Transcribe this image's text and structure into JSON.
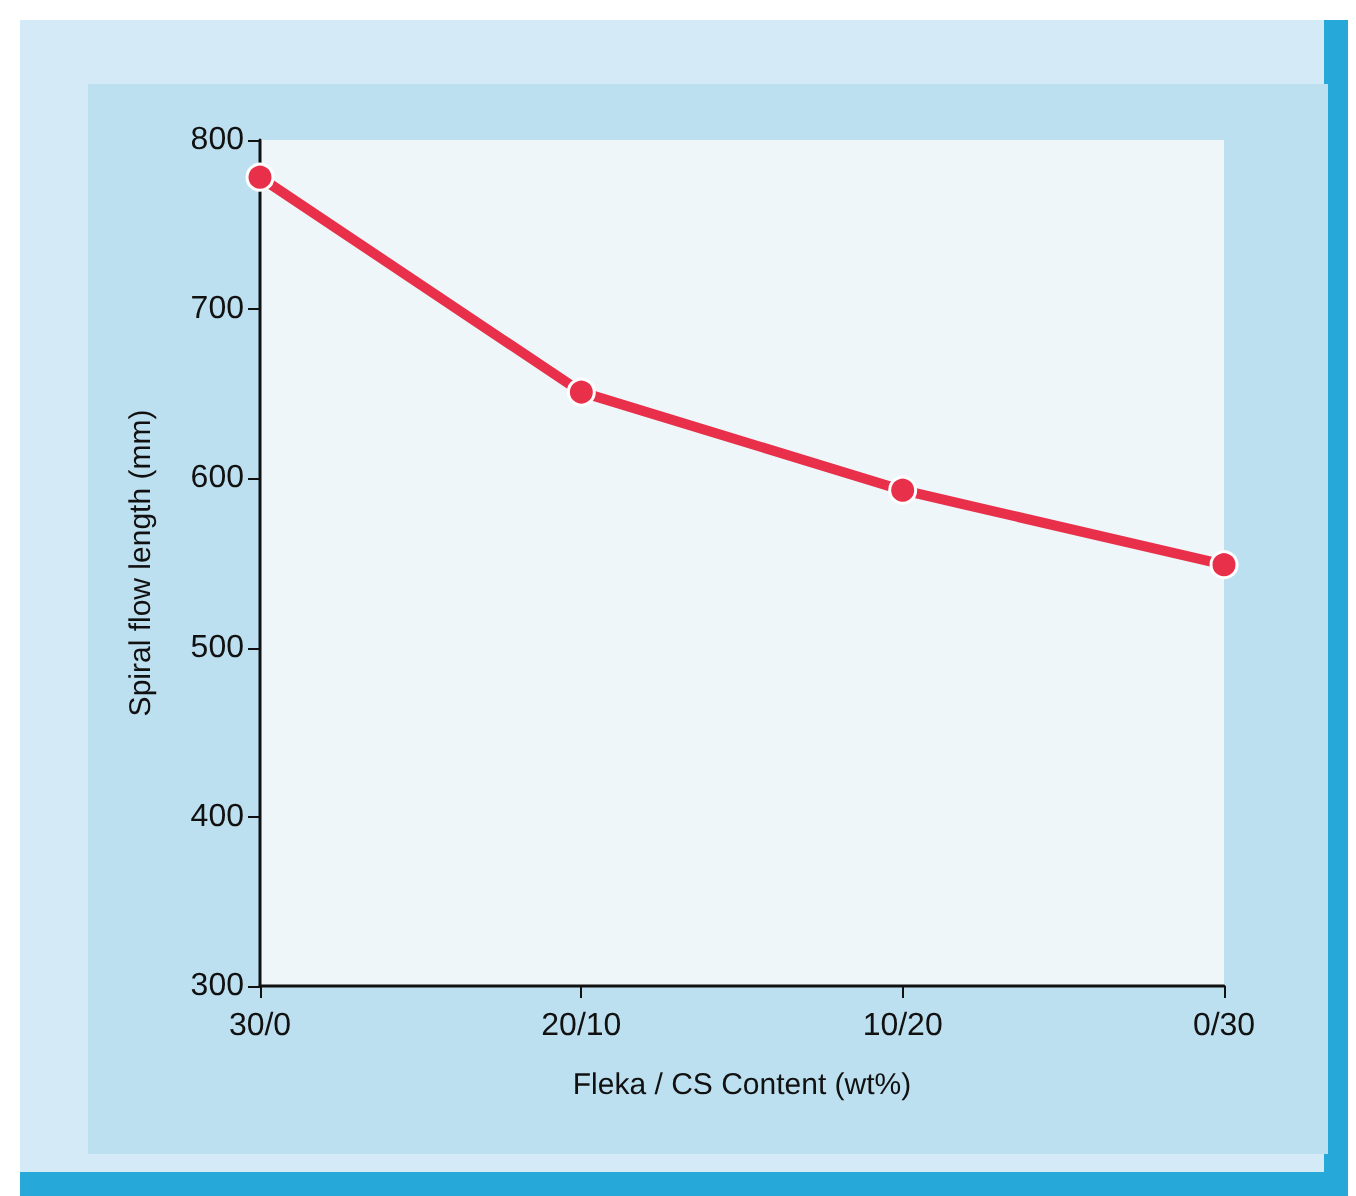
{
  "chart_data": {
    "type": "line",
    "xlabel": "Fleka / CS Content (wt%)",
    "ylabel": "Spiral flow length (mm)",
    "categories": [
      "30/0",
      "20/10",
      "10/20",
      "0/30"
    ],
    "series": [
      {
        "color": "#e8304a",
        "values": [
          778,
          651,
          593,
          549
        ]
      }
    ],
    "ylim": [
      300,
      800
    ],
    "yticks": [
      300,
      400,
      500,
      600,
      700,
      800
    ],
    "grid": false,
    "marker": "circle",
    "line_style": "solid"
  }
}
